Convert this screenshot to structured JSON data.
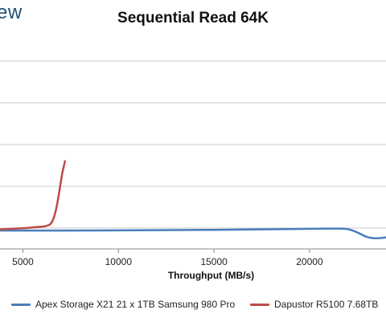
{
  "logo_text": "ew",
  "chart_data": {
    "type": "line",
    "title": "Sequential Read 64K",
    "xlabel": "Throughput (MB/s)",
    "ylabel": "",
    "xlim": [
      3800,
      24000
    ],
    "ylim": [
      0,
      100
    ],
    "x_ticks": [
      5000,
      10000,
      15000,
      20000
    ],
    "x_tick_labels": [
      "5000",
      "10000",
      "15000",
      "20000"
    ],
    "y_gridlines": [
      10,
      30,
      50,
      70,
      90
    ],
    "grid": true,
    "legend_position": "bottom",
    "series": [
      {
        "name": "Apex Storage X21 21 x 1TB Samsung 980 Pro",
        "color": "#4a7ebb",
        "points": [
          [
            3800,
            8.8
          ],
          [
            6000,
            8.8
          ],
          [
            8000,
            8.8
          ],
          [
            10000,
            8.9
          ],
          [
            12000,
            9.0
          ],
          [
            14000,
            9.1
          ],
          [
            16000,
            9.2
          ],
          [
            18000,
            9.4
          ],
          [
            20000,
            9.6
          ],
          [
            21500,
            9.8
          ],
          [
            22000,
            9.6
          ],
          [
            22500,
            8.0
          ],
          [
            23000,
            5.5
          ],
          [
            23500,
            5.0
          ],
          [
            24000,
            5.5
          ]
        ]
      },
      {
        "name": "Dapustor R5100 7.68TB",
        "color": "#be4b48",
        "points": [
          [
            3800,
            9.3
          ],
          [
            4500,
            9.7
          ],
          [
            5200,
            10.0
          ],
          [
            5800,
            10.6
          ],
          [
            6200,
            10.8
          ],
          [
            6500,
            12.0
          ],
          [
            6700,
            17.0
          ],
          [
            6900,
            27.0
          ],
          [
            7050,
            36.0
          ],
          [
            7150,
            40.0
          ],
          [
            7200,
            42.0
          ]
        ]
      }
    ]
  }
}
